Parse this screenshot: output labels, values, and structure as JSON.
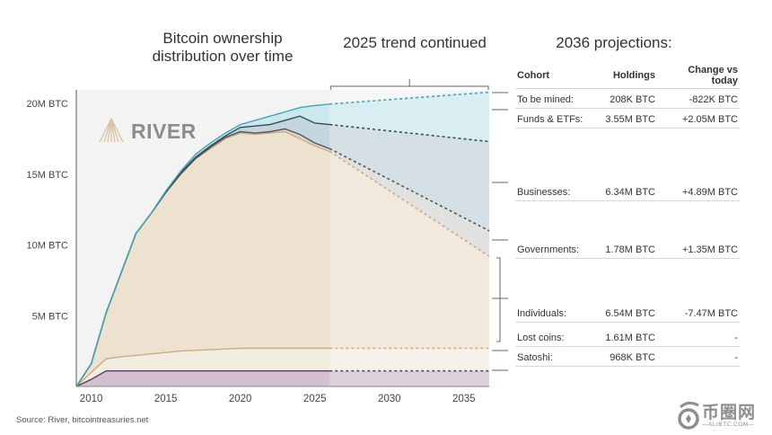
{
  "titles": {
    "main_line1": "Bitcoin ownership",
    "main_line2": "distribution over time",
    "trend": "2025 trend continued",
    "projections": "2036 projections:"
  },
  "brand": {
    "logo_text": "RIVER"
  },
  "source": "Source: River, bitcointreasuries.net",
  "watermark": {
    "text": "币圈网",
    "sub": "—ALIBTC.COM—"
  },
  "table": {
    "headers": [
      "Cohort",
      "Holdings",
      "Change vs today"
    ],
    "rows": [
      {
        "cohort": "To be mined:",
        "holdings": "208K BTC",
        "change": "-822K BTC"
      },
      {
        "cohort": "Funds & ETFs:",
        "holdings": "3.55M BTC",
        "change": "+2.05M BTC"
      },
      {
        "cohort": "Businesses:",
        "holdings": "6.34M BTC",
        "change": "+4.89M BTC"
      },
      {
        "cohort": "Governments:",
        "holdings": "1.78M BTC",
        "change": "+1.35M BTC"
      },
      {
        "cohort": "Individuals:",
        "holdings": "6.54M BTC",
        "change": "-7.47M BTC"
      },
      {
        "cohort": "Lost coins:",
        "holdings": "1.61M BTC",
        "change": "-"
      },
      {
        "cohort": "Satoshi:",
        "holdings": "968K BTC",
        "change": "-"
      }
    ]
  },
  "colors": {
    "plot_bg": "#f3f3f3",
    "projection_bg": "#f7f4ef",
    "satoshi": "#d2c0d2",
    "satoshi_line": "#5b3d5b",
    "lost": "#f3ede1",
    "individuals": "#ede1cf",
    "individuals_line": "#c8ad85",
    "governments": "#d6d6d6",
    "governments_line": "#555555",
    "businesses": "#c5d5dd",
    "businesses_line": "#2f4f5d",
    "funds": "#cbe8ee",
    "funds_line": "#44a4b5",
    "tobemined": "#dbf1f5"
  },
  "chart_data": {
    "type": "area",
    "title": "Bitcoin ownership distribution over time",
    "annotation": "2025 trend continued",
    "xlabel": "",
    "ylabel": "",
    "xlim": [
      2009,
      2036.7
    ],
    "ylim": [
      0,
      21
    ],
    "projection_start": 2026,
    "x_ticks": [
      2010,
      2015,
      2020,
      2025,
      2030,
      2035
    ],
    "x_tick_labels": [
      "2010",
      "2015",
      "2020",
      "2025",
      "2030",
      "2035"
    ],
    "y_ticks": [
      5,
      10,
      15,
      20
    ],
    "y_tick_labels": [
      "5M BTC",
      "10M BTC",
      "15M BTC",
      "20M BTC"
    ],
    "units": "million BTC (cumulative stacked boundaries)",
    "x": [
      2009,
      2010,
      2011,
      2012,
      2013,
      2014,
      2015,
      2016,
      2017,
      2018,
      2019,
      2020,
      2021,
      2022,
      2023,
      2024,
      2025,
      2026,
      2036.7
    ],
    "stack_order": [
      "Satoshi",
      "Lost coins",
      "Individuals",
      "Governments",
      "Businesses",
      "Funds & ETFs",
      "To be mined"
    ],
    "boundaries": [
      {
        "name": "Satoshi",
        "values": [
          0,
          0.5,
          1.1,
          1.1,
          1.1,
          1.1,
          1.1,
          1.1,
          1.1,
          1.1,
          1.1,
          1.1,
          1.1,
          1.1,
          1.1,
          1.1,
          1.1,
          1.1,
          1.1
        ]
      },
      {
        "name": "Lost coins",
        "values": [
          0,
          1.0,
          1.95,
          2.1,
          2.2,
          2.3,
          2.4,
          2.5,
          2.55,
          2.6,
          2.65,
          2.7,
          2.7,
          2.7,
          2.7,
          2.7,
          2.7,
          2.7,
          2.7
        ]
      },
      {
        "name": "Individuals",
        "values": [
          0,
          1.6,
          5.2,
          8.0,
          10.8,
          12.2,
          13.7,
          15.0,
          16.1,
          16.8,
          17.5,
          17.9,
          17.8,
          17.9,
          18.0,
          17.5,
          17.0,
          16.6,
          9.2
        ]
      },
      {
        "name": "Governments",
        "values": [
          0,
          1.6,
          5.2,
          8.0,
          10.8,
          12.2,
          13.7,
          15.0,
          16.1,
          16.9,
          17.6,
          18.0,
          17.9,
          18.0,
          18.2,
          17.8,
          17.2,
          16.8,
          11.0
        ]
      },
      {
        "name": "Businesses",
        "values": [
          0,
          1.6,
          5.2,
          8.0,
          10.8,
          12.2,
          13.7,
          15.1,
          16.2,
          17.0,
          17.7,
          18.3,
          18.4,
          18.5,
          18.8,
          19.1,
          18.6,
          18.5,
          17.3
        ]
      },
      {
        "name": "Funds & ETFs",
        "values": [
          0,
          1.6,
          5.2,
          8.0,
          10.8,
          12.2,
          13.8,
          15.2,
          16.4,
          17.2,
          17.9,
          18.5,
          18.8,
          19.1,
          19.4,
          19.7,
          19.85,
          19.95,
          20.79
        ]
      },
      {
        "name": "To be mined",
        "values": [
          0,
          1.6,
          5.2,
          8.0,
          10.8,
          12.2,
          13.8,
          15.2,
          16.4,
          17.2,
          17.9,
          18.5,
          18.8,
          19.1,
          19.4,
          19.7,
          19.85,
          19.95,
          21.0
        ]
      }
    ],
    "projections_2036": [
      {
        "cohort": "To be mined",
        "holdings_btc": 208000,
        "change_btc": -822000
      },
      {
        "cohort": "Funds & ETFs",
        "holdings_btc": 3550000,
        "change_btc": 2050000
      },
      {
        "cohort": "Businesses",
        "holdings_btc": 6340000,
        "change_btc": 4890000
      },
      {
        "cohort": "Governments",
        "holdings_btc": 1780000,
        "change_btc": 1350000
      },
      {
        "cohort": "Individuals",
        "holdings_btc": 6540000,
        "change_btc": -7470000
      },
      {
        "cohort": "Lost coins",
        "holdings_btc": 1610000,
        "change_btc": null
      },
      {
        "cohort": "Satoshi",
        "holdings_btc": 968000,
        "change_btc": null
      }
    ]
  }
}
